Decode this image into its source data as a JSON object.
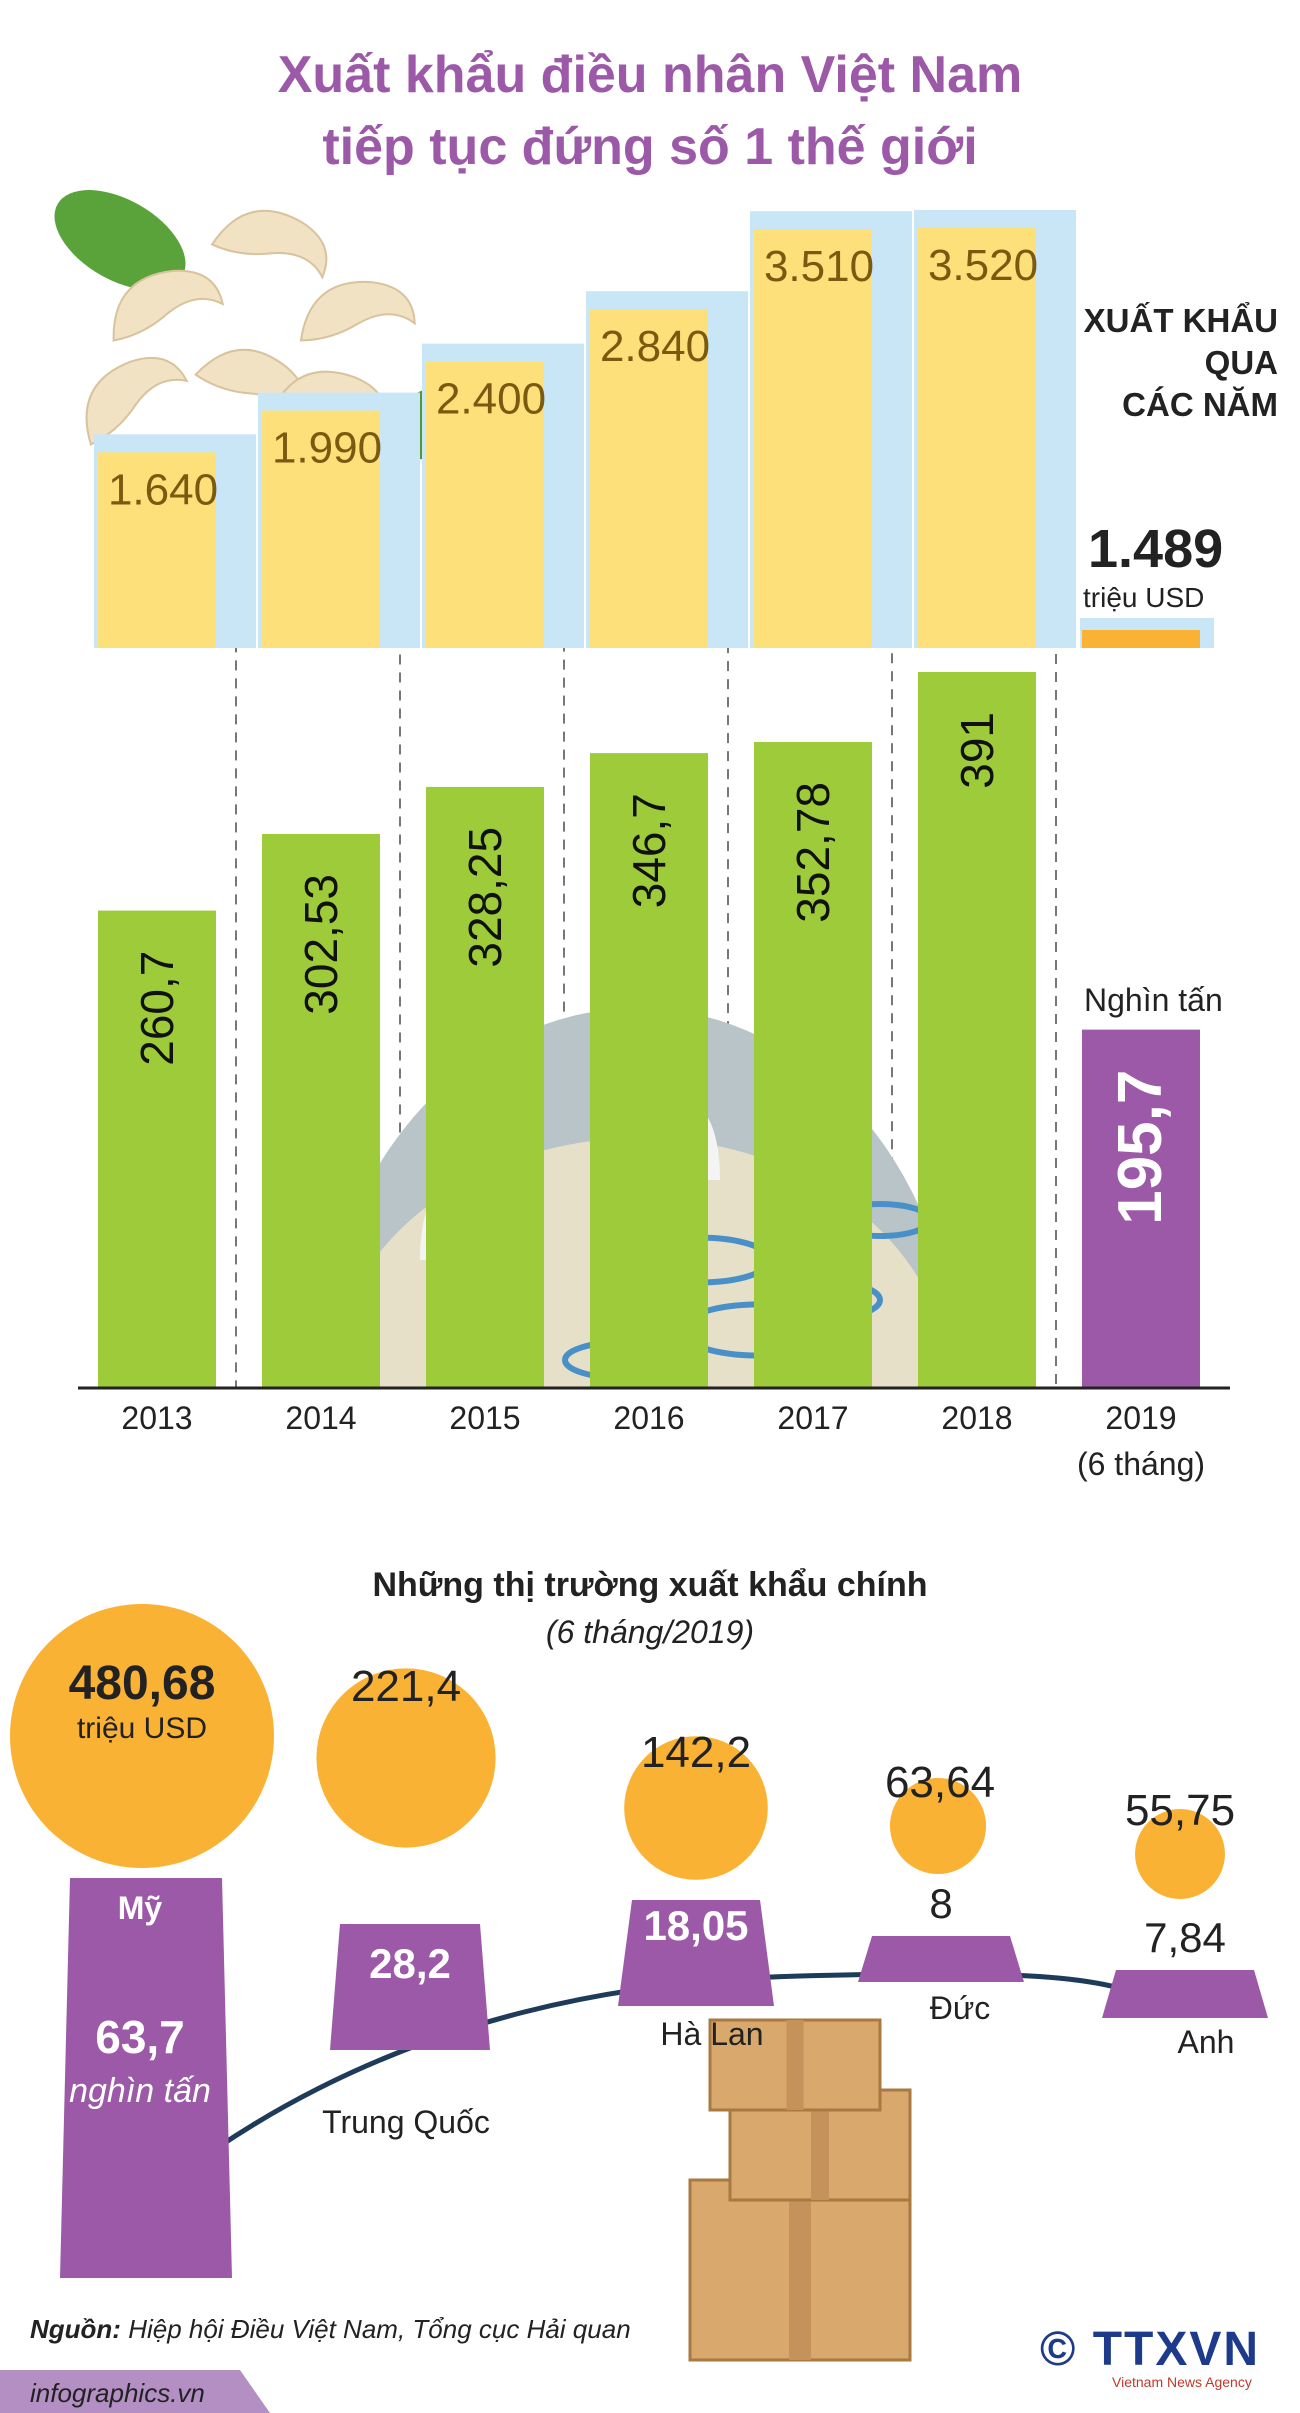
{
  "title_line1": "Xuất khẩu điều nhân Việt Nam",
  "title_line2": "tiếp tục đứng số 1 thế giới",
  "side_label": [
    "XUẤT KHẨU",
    "QUA",
    "CÁC NĂM"
  ],
  "unit_value": "triệu USD",
  "unit_volume": "Nghìn tấn",
  "colors": {
    "title": "#9b59a8",
    "value_bar": "#fde07a",
    "value_bar_shadow": "#c9e6f7",
    "volume_bar": "#9dcb3a",
    "volume_2019": "#9b59a8",
    "market_circle": "#f9b233",
    "market_trapezoid": "#9b59a8",
    "market_curve": "#1f3b5a"
  },
  "chart_data": [
    {
      "type": "bar",
      "categories": [
        "2013",
        "2014",
        "2015",
        "2016",
        "2017",
        "2018",
        "2019"
      ],
      "category_sub": [
        "",
        "",
        "",
        "",
        "",
        "",
        "(6 tháng)"
      ],
      "series": [
        {
          "name": "triệu USD",
          "values": [
            1640,
            1990,
            2400,
            2840,
            3510,
            3520,
            1489
          ],
          "labels": [
            "1.640",
            "1.990",
            "2.400",
            "2.840",
            "3.510",
            "3.520",
            "1.489"
          ]
        },
        {
          "name": "Nghìn tấn",
          "values": [
            260.7,
            302.53,
            328.25,
            346.7,
            352.78,
            391,
            195.7
          ],
          "labels": [
            "260,7",
            "302,53",
            "328,25",
            "346,7",
            "352,78",
            "391",
            "195,7"
          ]
        }
      ]
    },
    {
      "type": "bubble",
      "title": "Những thị trường xuất khẩu chính",
      "subtitle": "(6 tháng/2019)",
      "categories": [
        "Mỹ",
        "Trung Quốc",
        "Hà Lan",
        "Đức",
        "Anh"
      ],
      "series": [
        {
          "name": "triệu USD",
          "values": [
            480.68,
            221.4,
            142.2,
            63.64,
            55.75
          ],
          "labels": [
            "480,68",
            "221,4",
            "142,2",
            "63,64",
            "55,75"
          ]
        },
        {
          "name": "nghìn tấn",
          "values": [
            63.7,
            28.2,
            18.05,
            8,
            7.84
          ],
          "labels": [
            "63,7",
            "28,2",
            "18,05",
            "8",
            "7,84"
          ]
        }
      ]
    }
  ],
  "my_unit": "nghìn tấn",
  "source_label": "Nguồn:",
  "source_text": " Hiệp hội Điều Việt Nam, Tổng cục Hải quan",
  "footer": "infographics.vn",
  "logo": "© TTXVN",
  "logo_sub": "Vietnam News Agency"
}
